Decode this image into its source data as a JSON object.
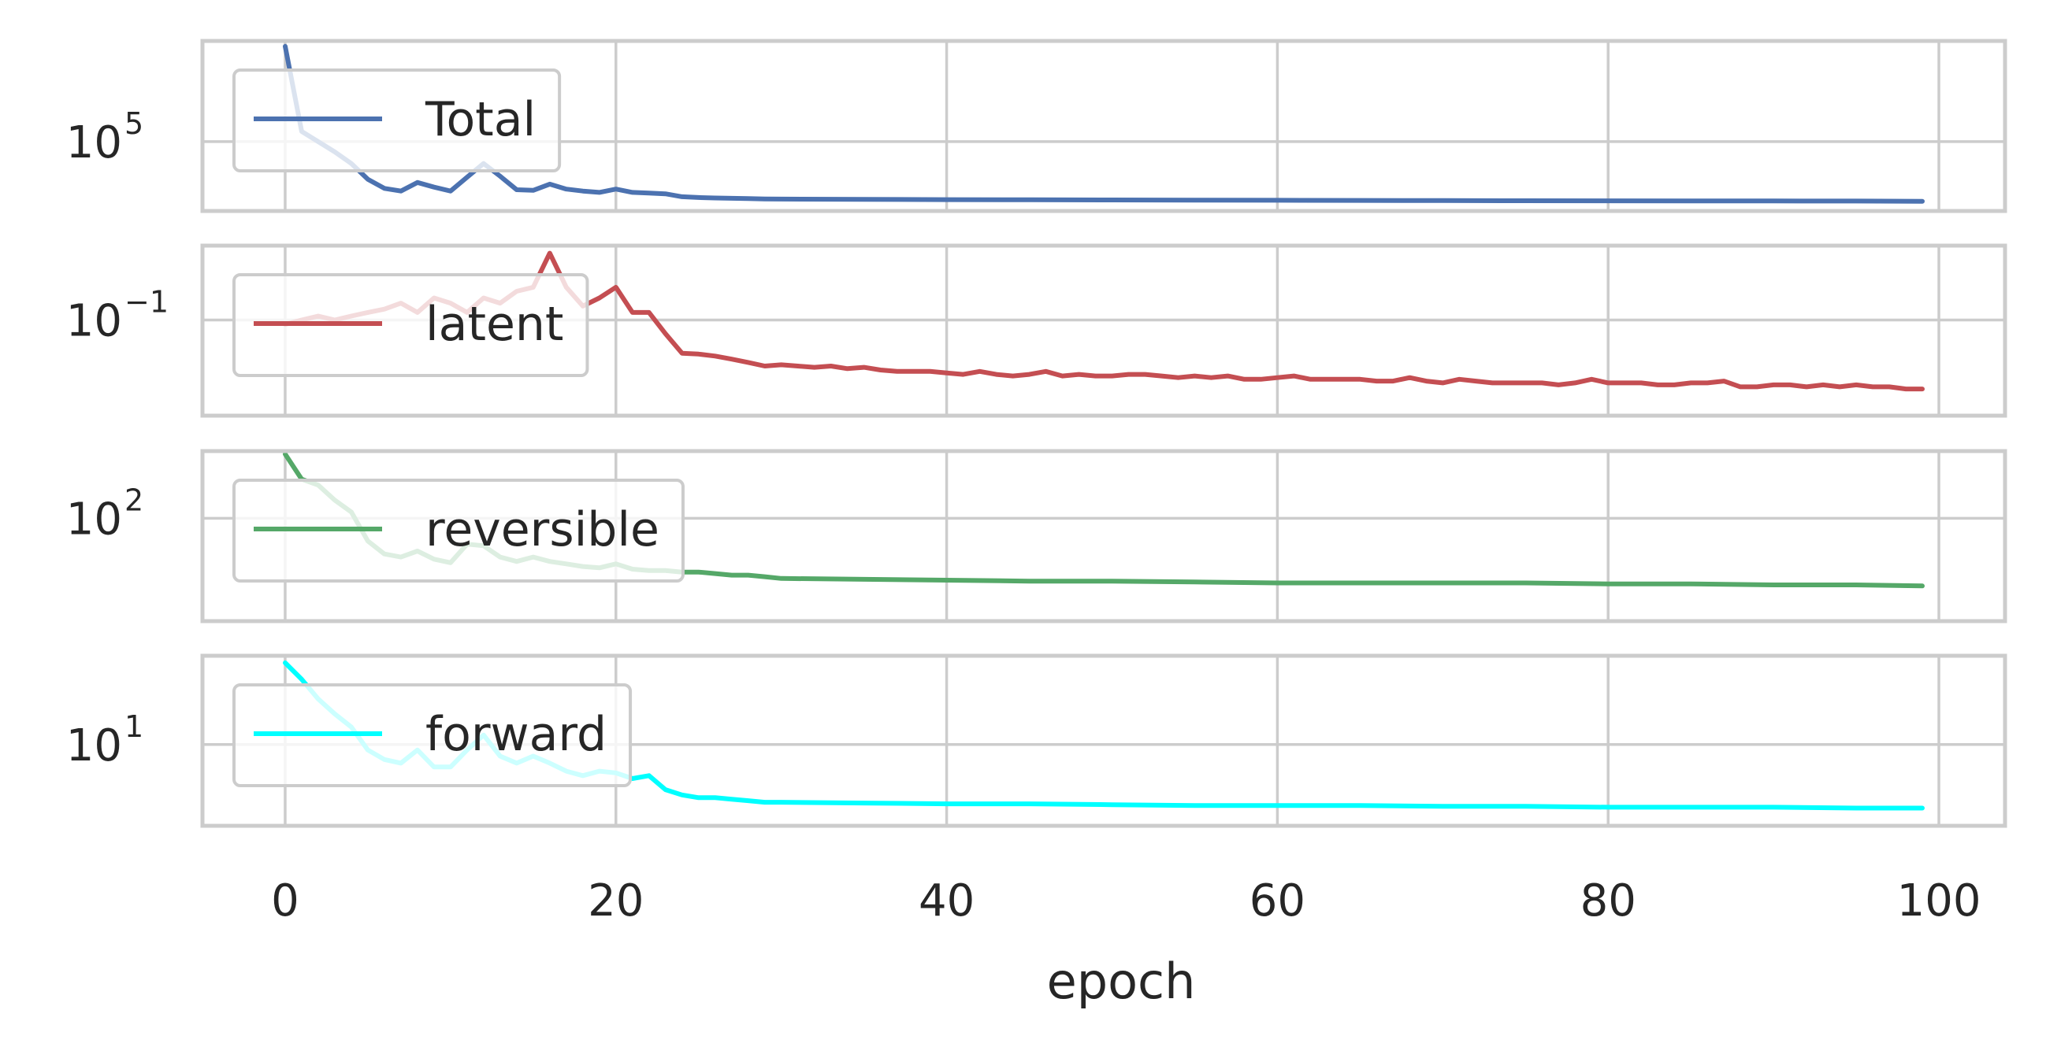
{
  "chart_data": [
    {
      "type": "line",
      "yscale": "log",
      "xlim": [
        -5,
        104
      ],
      "ylim": [
        22000,
        900000
      ],
      "ytick_base": "10",
      "ytick_exp": "5",
      "ytick_value": 100000,
      "legend": "upper-left",
      "grid": true,
      "series": [
        {
          "name": "Total",
          "color": "#4c72b0",
          "x": [
            0,
            1,
            2,
            3,
            4,
            5,
            6,
            7,
            8,
            9,
            10,
            11,
            12,
            13,
            14,
            15,
            16,
            17,
            18,
            19,
            20,
            21,
            22,
            23,
            24,
            25,
            26,
            27,
            28,
            29,
            30,
            35,
            40,
            45,
            50,
            55,
            60,
            65,
            70,
            75,
            80,
            85,
            90,
            95,
            99
          ],
          "y": [
            800000,
            125000,
            100000,
            80000,
            62000,
            44000,
            36000,
            34000,
            41000,
            37000,
            34000,
            46000,
            62000,
            47000,
            35000,
            34500,
            39500,
            35500,
            34000,
            33000,
            35500,
            33000,
            32500,
            32000,
            30000,
            29500,
            29200,
            29000,
            28800,
            28600,
            28500,
            28300,
            28200,
            28100,
            28000,
            27900,
            27800,
            27700,
            27600,
            27500,
            27450,
            27400,
            27350,
            27300,
            27200
          ]
        }
      ]
    },
    {
      "type": "line",
      "yscale": "log",
      "xlim": [
        -5,
        104
      ],
      "ylim": [
        0.01,
        0.6
      ],
      "ytick_base": "10",
      "ytick_exp": "−1",
      "ytick_value": 0.1,
      "legend": "upper-left",
      "grid": true,
      "series": [
        {
          "name": "latent",
          "color": "#c44e52",
          "x": [
            0,
            1,
            2,
            3,
            4,
            5,
            6,
            7,
            8,
            9,
            10,
            11,
            12,
            13,
            14,
            15,
            16,
            17,
            18,
            19,
            20,
            21,
            22,
            23,
            24,
            25,
            26,
            27,
            28,
            29,
            30,
            31,
            32,
            33,
            34,
            35,
            36,
            37,
            38,
            39,
            40,
            41,
            42,
            43,
            44,
            45,
            46,
            47,
            48,
            49,
            50,
            51,
            52,
            53,
            54,
            55,
            56,
            57,
            58,
            59,
            60,
            61,
            62,
            63,
            64,
            65,
            66,
            67,
            68,
            69,
            70,
            71,
            72,
            73,
            74,
            75,
            76,
            77,
            78,
            79,
            80,
            81,
            82,
            83,
            84,
            85,
            86,
            87,
            88,
            89,
            90,
            91,
            92,
            93,
            94,
            95,
            96,
            97,
            98,
            99
          ],
          "y": [
            0.09,
            0.1,
            0.11,
            0.1,
            0.11,
            0.12,
            0.13,
            0.15,
            0.12,
            0.17,
            0.15,
            0.12,
            0.17,
            0.15,
            0.2,
            0.22,
            0.5,
            0.22,
            0.14,
            0.17,
            0.22,
            0.12,
            0.12,
            0.072,
            0.045,
            0.044,
            0.042,
            0.039,
            0.036,
            0.033,
            0.034,
            0.033,
            0.032,
            0.033,
            0.031,
            0.032,
            0.03,
            0.029,
            0.029,
            0.029,
            0.028,
            0.027,
            0.029,
            0.027,
            0.026,
            0.027,
            0.029,
            0.026,
            0.027,
            0.026,
            0.026,
            0.027,
            0.027,
            0.026,
            0.025,
            0.026,
            0.025,
            0.026,
            0.024,
            0.024,
            0.025,
            0.026,
            0.024,
            0.024,
            0.024,
            0.024,
            0.023,
            0.023,
            0.025,
            0.023,
            0.022,
            0.024,
            0.023,
            0.022,
            0.022,
            0.022,
            0.022,
            0.021,
            0.022,
            0.024,
            0.022,
            0.022,
            0.022,
            0.021,
            0.021,
            0.022,
            0.022,
            0.023,
            0.02,
            0.02,
            0.021,
            0.021,
            0.02,
            0.021,
            0.02,
            0.021,
            0.02,
            0.02,
            0.019,
            0.019
          ]
        }
      ]
    },
    {
      "type": "line",
      "yscale": "log",
      "xlim": [
        -5,
        104
      ],
      "ylim": [
        10,
        450
      ],
      "ytick_base": "10",
      "ytick_exp": "2",
      "ytick_value": 100,
      "legend": "upper-left",
      "grid": true,
      "series": [
        {
          "name": "reversible",
          "color": "#55a868",
          "x": [
            0,
            1,
            2,
            3,
            4,
            5,
            6,
            7,
            8,
            9,
            10,
            11,
            12,
            13,
            14,
            15,
            16,
            17,
            18,
            19,
            20,
            21,
            22,
            23,
            24,
            25,
            26,
            27,
            28,
            29,
            30,
            35,
            40,
            45,
            50,
            55,
            60,
            65,
            70,
            75,
            80,
            85,
            90,
            95,
            99
          ],
          "y": [
            420,
            240,
            210,
            150,
            115,
            60,
            45,
            42,
            48,
            40,
            37,
            56,
            54,
            42,
            38,
            42,
            38,
            36,
            34,
            33,
            36,
            32,
            31,
            31,
            30,
            30,
            29,
            28,
            28,
            27,
            26,
            25.5,
            25,
            24.5,
            24.5,
            24,
            23.5,
            23.5,
            23.5,
            23.5,
            23,
            23,
            22.5,
            22.5,
            22
          ]
        }
      ]
    },
    {
      "type": "line",
      "yscale": "log",
      "xlim": [
        -5,
        104
      ],
      "ylim": [
        2.1,
        55
      ],
      "ytick_base": "10",
      "ytick_exp": "1",
      "ytick_value": 10,
      "legend": "upper-left",
      "grid": true,
      "series": [
        {
          "name": "forward",
          "color": "#00ffff",
          "x": [
            0,
            1,
            2,
            3,
            4,
            5,
            6,
            7,
            8,
            9,
            10,
            11,
            12,
            13,
            14,
            15,
            16,
            17,
            18,
            19,
            20,
            21,
            22,
            23,
            24,
            25,
            26,
            27,
            28,
            29,
            30,
            35,
            40,
            45,
            50,
            55,
            60,
            65,
            70,
            75,
            80,
            85,
            90,
            95,
            99
          ],
          "y": [
            48,
            35,
            24,
            18,
            14,
            9,
            7.5,
            7,
            9,
            6.5,
            6.5,
            9,
            12,
            8,
            7,
            8,
            7,
            6,
            5.5,
            6,
            5.8,
            5.2,
            5.5,
            4.2,
            3.8,
            3.6,
            3.6,
            3.5,
            3.4,
            3.3,
            3.3,
            3.25,
            3.2,
            3.2,
            3.15,
            3.1,
            3.1,
            3.1,
            3.05,
            3.05,
            3.0,
            3.0,
            3.0,
            2.95,
            2.95
          ]
        }
      ]
    }
  ],
  "xaxis": {
    "label": "epoch",
    "ticks": [
      {
        "value": 0,
        "label": "0"
      },
      {
        "value": 20,
        "label": "20"
      },
      {
        "value": 40,
        "label": "40"
      },
      {
        "value": 60,
        "label": "60"
      },
      {
        "value": 80,
        "label": "80"
      },
      {
        "value": 100,
        "label": "100"
      }
    ]
  },
  "colors": {
    "grid": "#cccccc",
    "frame": "#cccccc",
    "text": "#262626",
    "legend_frame": "#cccccc"
  }
}
